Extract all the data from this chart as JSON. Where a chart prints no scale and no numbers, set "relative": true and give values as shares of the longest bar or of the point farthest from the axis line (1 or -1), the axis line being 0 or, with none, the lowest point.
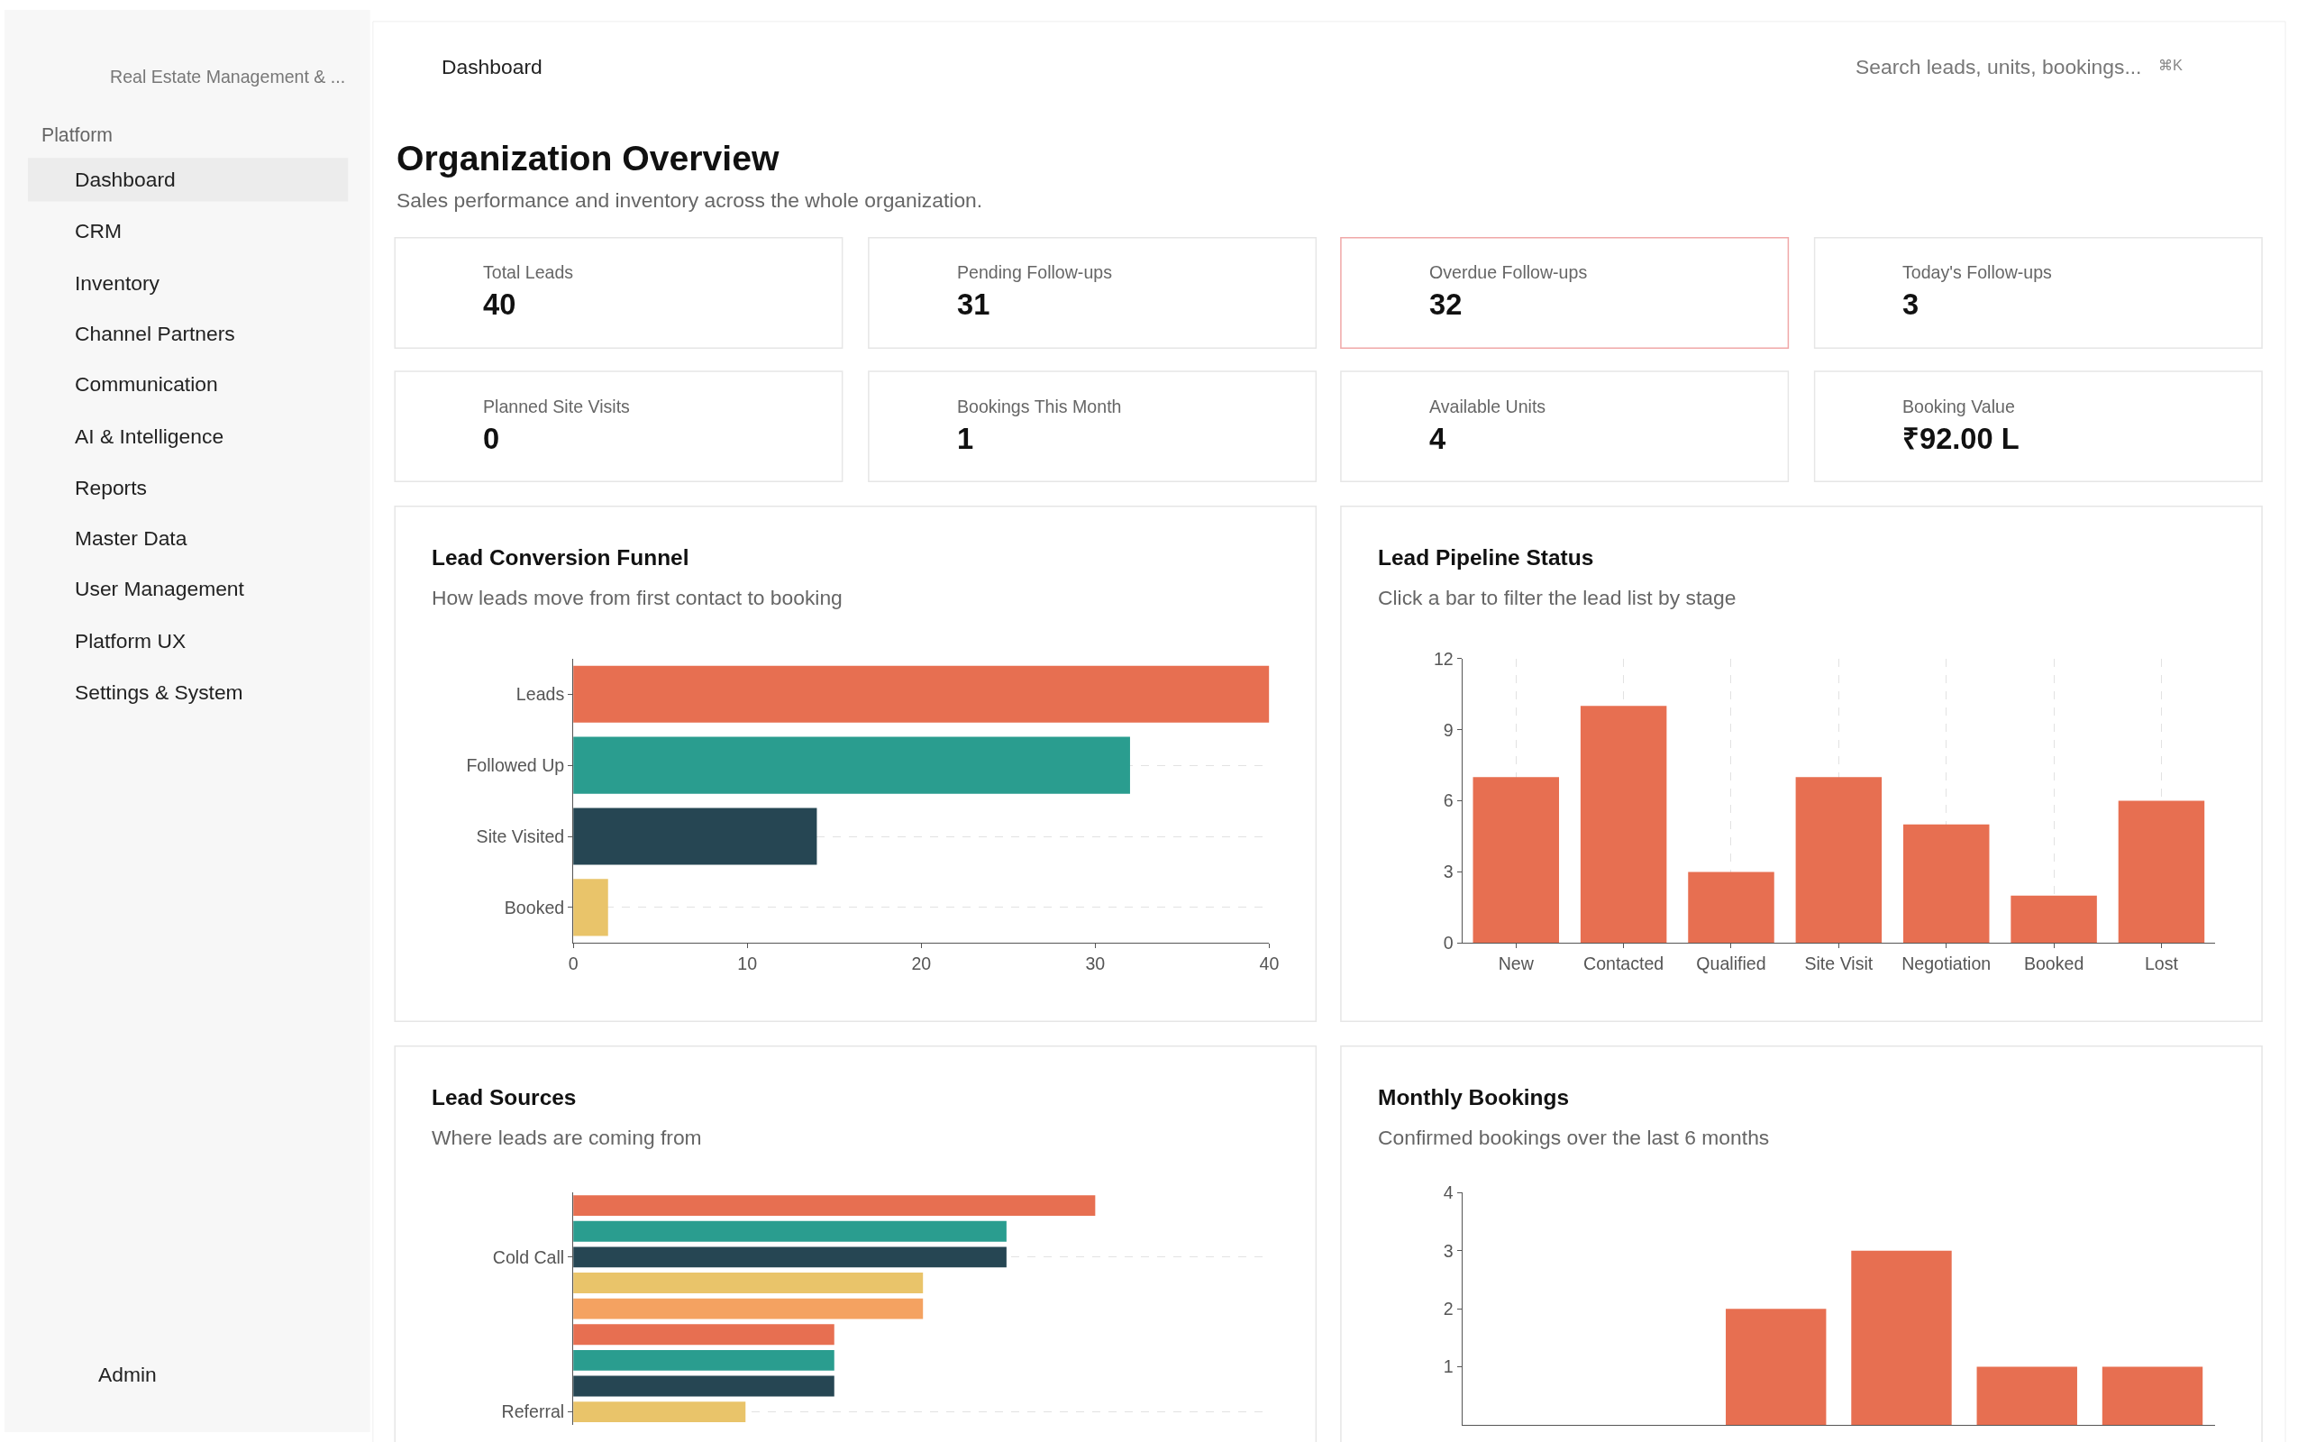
{
  "chart_data": [
    {
      "type": "other",
      "title": "Organization Overview",
      "subtitle": "Sales performance and inventory across the whole organization.",
      "annotations": [
        "Real Estate Management & ...",
        "Platform",
        "Dashboard",
        "CRM",
        "Inventory",
        "Channel Partners",
        "Communication",
        "AI & Intelligence",
        "Reports",
        "Master Data",
        "User Management",
        "Platform UX",
        "Settings & System",
        "Admin",
        "Dashboard",
        "Search leads, units, bookings...",
        "⌘K",
        "Total Leads",
        "40",
        "Pending Follow-ups",
        "31",
        "Overdue Follow-ups",
        "32",
        "Today's Follow-ups",
        "3",
        "Planned Site Visits",
        "0",
        "Bookings This Month",
        "1",
        "Available Units",
        "4",
        "Booking Value",
        "₹92.00 L"
      ]
    },
    {
      "type": "bar",
      "orientation": "horizontal",
      "title": "Lead Conversion Funnel",
      "subtitle": "How leads move from first contact to booking",
      "categories": [
        "Leads",
        "Followed Up",
        "Site Visited",
        "Booked"
      ],
      "values": [
        40,
        32,
        14,
        2
      ],
      "colors": [
        "#e76f51",
        "#2a9d8f",
        "#264653",
        "#e9c46a"
      ],
      "xlim": [
        0,
        40
      ],
      "xticks": [
        0,
        10,
        20,
        30,
        40
      ],
      "grid": "y"
    },
    {
      "type": "bar",
      "title": "Lead Pipeline Status",
      "subtitle": "Click a bar to filter the lead list by stage",
      "categories": [
        "New",
        "Contacted",
        "Qualified",
        "Site Visit",
        "Negotiation",
        "Booked",
        "Lost"
      ],
      "values": [
        7,
        10,
        3,
        7,
        5,
        2,
        6
      ],
      "color": "#e76f51",
      "ylim": [
        0,
        12
      ],
      "yticks": [
        0,
        3,
        6,
        9,
        12
      ],
      "grid": "x"
    },
    {
      "type": "bar",
      "orientation": "horizontal",
      "relative": true,
      "title": "Lead Sources",
      "subtitle": "Where leads are coming from",
      "categories": [
        null,
        null,
        "Cold Call",
        null,
        null,
        null,
        null,
        null,
        "Referral"
      ],
      "values": [
        1,
        0.83,
        0.83,
        0.67,
        0.67,
        0.5,
        0.5,
        0.5,
        0.33
      ],
      "colors": [
        "#e76f51",
        "#2a9d8f",
        "#264653",
        "#e9c46a",
        "#f4a261",
        "#e76f51",
        "#2a9d8f",
        "#264653",
        "#e9c46a"
      ],
      "grid": "y"
    },
    {
      "type": "bar",
      "title": "Monthly Bookings",
      "subtitle": "Confirmed bookings over the last 6 months",
      "categories": [
        null,
        null,
        null,
        null,
        null,
        null
      ],
      "values": [
        0,
        0,
        2,
        3,
        1,
        1
      ],
      "color": "#e76f51",
      "ylim": [
        0,
        4
      ],
      "yticks": [
        1,
        2,
        3,
        4
      ],
      "grid": "x"
    }
  ]
}
